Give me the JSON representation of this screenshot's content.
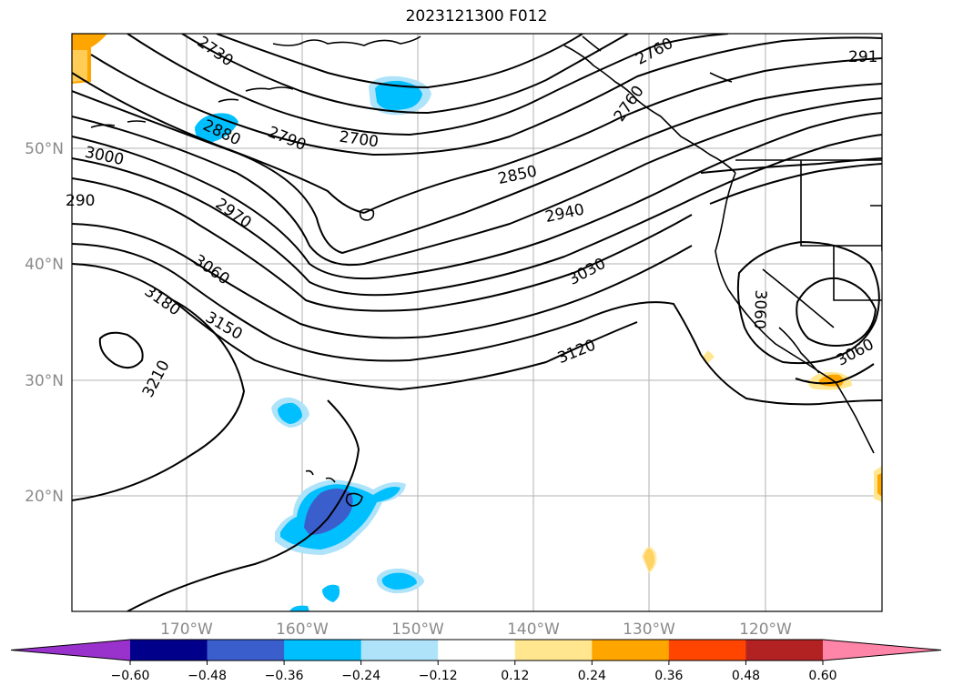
{
  "title": "2023121300 F012",
  "map": {
    "lat_labels": [
      "50°N",
      "40°N",
      "30°N",
      "20°N"
    ],
    "lon_labels": [
      "170°W",
      "160°W",
      "150°W",
      "140°W",
      "130°W",
      "120°W"
    ],
    "contour_labels": [
      "2730",
      "2880",
      "2790",
      "2700",
      "2760",
      "2850",
      "2940",
      "3000",
      "2970",
      "3030",
      "3060",
      "3180",
      "3150",
      "3120",
      "3210",
      "3060",
      "3060",
      "291",
      "290",
      "2760"
    ]
  },
  "colorbar": {
    "ticks": [
      "−0.60",
      "−0.48",
      "−0.36",
      "−0.24",
      "−0.12",
      "0.12",
      "0.24",
      "0.36",
      "0.48",
      "0.60"
    ],
    "colors": [
      "#9932cc",
      "#00008b",
      "#3a5fcd",
      "#00bfff",
      "#aee3fa",
      "#ffffff",
      "#ffe68f",
      "#ffa500",
      "#ff4500",
      "#b22222",
      "#ff85a8"
    ],
    "extend": "both"
  }
}
